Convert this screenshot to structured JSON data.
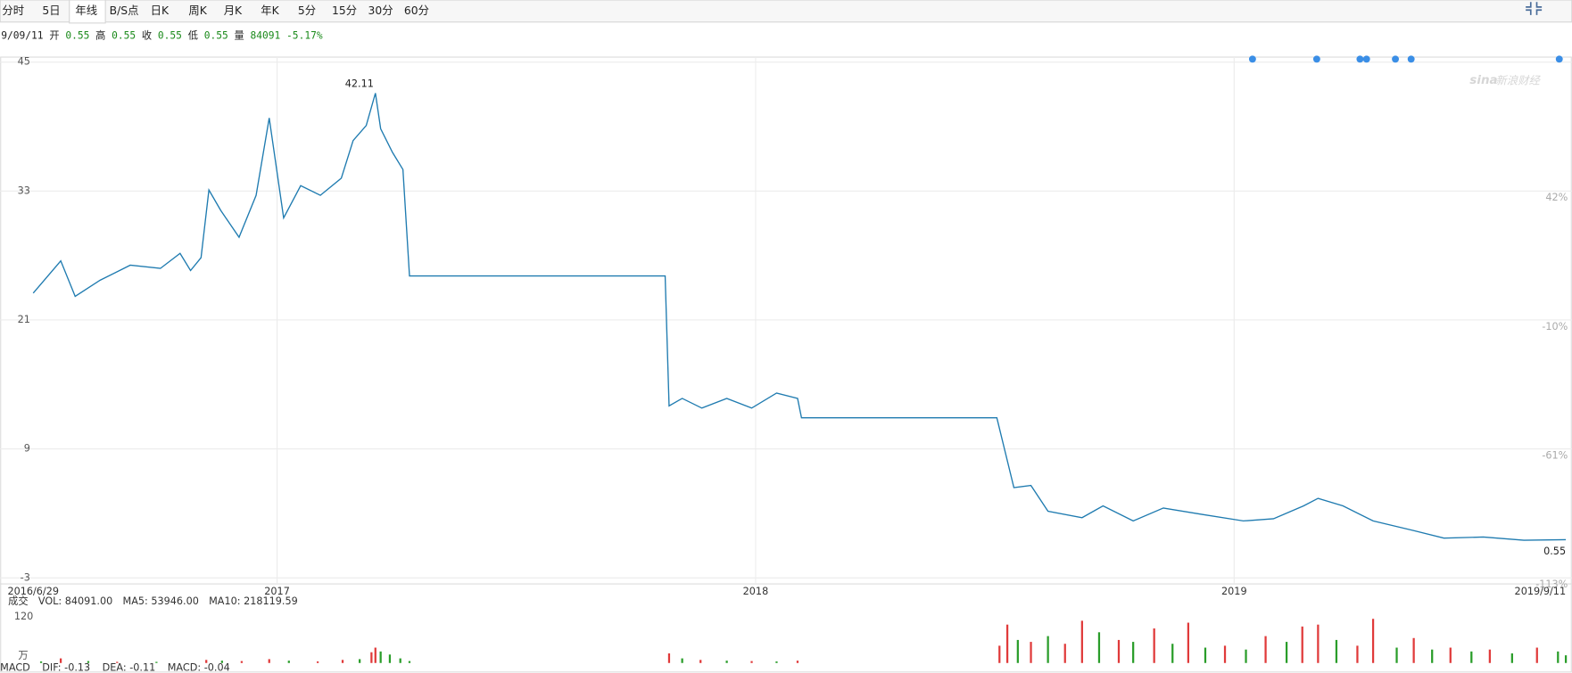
{
  "toolbar": {
    "tabs": [
      "分时",
      "5日",
      "年线",
      "B/S点",
      "日K",
      "周K",
      "月K",
      "年K",
      "5分",
      "15分",
      "30分",
      "60分"
    ],
    "active_tab": 2
  },
  "quote": {
    "date": "9/09/11",
    "items": [
      {
        "label": "开",
        "value": 0.55
      },
      {
        "label": "高",
        "value": 0.55
      },
      {
        "label": "收",
        "value": 0.55
      },
      {
        "label": "低",
        "value": 0.55
      },
      {
        "label": "量",
        "value": 84091
      }
    ],
    "change": "-5.17%"
  },
  "watermark": {
    "logo": "sina",
    "text": "新浪财经"
  },
  "chart_data": [
    {
      "type": "line",
      "grid": true,
      "xlim": [
        "2016-06-29",
        "2019-09-11"
      ],
      "xticks": [
        {
          "value": "2016-06-29",
          "label": "2016/6/29"
        },
        {
          "value": "2017-01-01",
          "label": "2017"
        },
        {
          "value": "2018-01-01",
          "label": "2018"
        },
        {
          "value": "2019-01-01",
          "label": "2019"
        },
        {
          "value": "2019-09-11",
          "label": "2019/9/11"
        }
      ],
      "ylim": [
        -3,
        45
      ],
      "yticks": [
        45,
        33,
        21,
        9,
        -3
      ],
      "pct_ticks": [
        {
          "value": 33,
          "label": "42%"
        },
        {
          "value": 21,
          "label": "-10%"
        },
        {
          "value": 9,
          "label": "-61%"
        },
        {
          "value": -3,
          "label": "-113%"
        }
      ],
      "event_dates": [
        "2019-01-15",
        "2019-03-05",
        "2019-04-07",
        "2019-04-12",
        "2019-05-04",
        "2019-05-16",
        "2019-09-06"
      ],
      "event_color": "#3a8ee6",
      "series": [
        {
          "color": "#1f7bb0",
          "x": [
            "2016-06-29",
            "2016-07-20",
            "2016-07-31",
            "2016-08-19",
            "2016-09-11",
            "2016-10-04",
            "2016-10-19",
            "2016-10-27",
            "2016-11-04",
            "2016-11-10",
            "2016-11-19",
            "2016-12-03",
            "2016-12-16",
            "2016-12-26",
            "2017-01-06",
            "2017-01-19",
            "2017-02-03",
            "2017-02-19",
            "2017-02-28",
            "2017-03-10",
            "2017-03-17",
            "2017-03-21",
            "2017-03-30",
            "2017-04-07",
            "2017-04-12",
            "2017-10-24",
            "2017-10-27",
            "2017-11-06",
            "2017-11-21",
            "2017-12-10",
            "2017-12-29",
            "2018-01-17",
            "2018-02-02",
            "2018-02-05",
            "2018-07-04",
            "2018-07-17",
            "2018-07-30",
            "2018-08-12",
            "2018-09-07",
            "2018-09-23",
            "2018-10-16",
            "2018-11-08",
            "2018-12-08",
            "2019-01-08",
            "2019-01-31",
            "2019-02-23",
            "2019-03-06",
            "2019-03-25",
            "2019-04-17",
            "2019-05-18",
            "2019-06-10",
            "2019-07-10",
            "2019-08-10",
            "2019-09-11"
          ],
          "values": [
            23.5,
            26.5,
            23.2,
            24.7,
            26.1,
            25.8,
            27.2,
            25.6,
            26.8,
            33.1,
            31.2,
            28.7,
            32.6,
            39.8,
            30.5,
            33.5,
            32.6,
            34.2,
            37.7,
            39.1,
            42.11,
            38.8,
            36.6,
            35.0,
            25.1,
            25.1,
            13.0,
            13.7,
            12.8,
            13.7,
            12.8,
            14.2,
            13.7,
            11.9,
            11.9,
            5.4,
            5.6,
            3.2,
            2.6,
            3.7,
            2.3,
            3.5,
            2.9,
            2.3,
            2.5,
            3.7,
            4.4,
            3.7,
            2.3,
            1.4,
            0.7,
            0.8,
            0.5,
            0.55
          ]
        }
      ],
      "max_index": 20
    },
    {
      "type": "bar",
      "unit": "万",
      "legend": [
        "成交",
        "VOL: 84091.00",
        "MA5: 53946.00",
        "MA10: 218119.59"
      ],
      "legend_colors": [
        "#888888",
        "#888888",
        "#e88fa9",
        "#2bb5c8"
      ],
      "macd_legend": [
        "MACD",
        "DIF: -0.13",
        "DEA: -0.11",
        "MACD: -0.04"
      ],
      "macd_legend_colors": [
        "#888888",
        "#3a7bd5",
        "#c36fd6",
        "#c0392b"
      ],
      "ylim": [
        0,
        120
      ],
      "yticks": [
        120
      ],
      "x": [
        "2016-07-05",
        "2016-07-20",
        "2016-08-10",
        "2016-09-01",
        "2016-10-01",
        "2016-11-08",
        "2016-11-20",
        "2016-12-05",
        "2016-12-26",
        "2017-01-10",
        "2017-02-01",
        "2017-02-20",
        "2017-03-05",
        "2017-03-14",
        "2017-03-17",
        "2017-03-21",
        "2017-03-28",
        "2017-04-05",
        "2017-04-12",
        "2017-10-27",
        "2017-11-06",
        "2017-11-20",
        "2017-12-10",
        "2017-12-29",
        "2018-01-17",
        "2018-02-02",
        "2018-07-06",
        "2018-07-12",
        "2018-07-20",
        "2018-07-30",
        "2018-08-12",
        "2018-08-25",
        "2018-09-07",
        "2018-09-20",
        "2018-10-05",
        "2018-10-16",
        "2018-11-01",
        "2018-11-15",
        "2018-11-27",
        "2018-12-10",
        "2018-12-25",
        "2019-01-10",
        "2019-01-25",
        "2019-02-10",
        "2019-02-22",
        "2019-03-06",
        "2019-03-20",
        "2019-04-05",
        "2019-04-17",
        "2019-05-05",
        "2019-05-18",
        "2019-06-01",
        "2019-06-15",
        "2019-07-01",
        "2019-07-15",
        "2019-08-01",
        "2019-08-20",
        "2019-09-05",
        "2019-09-11"
      ],
      "values": [
        4,
        12,
        5,
        3,
        3,
        8,
        6,
        5,
        10,
        6,
        4,
        8,
        10,
        28,
        40,
        30,
        22,
        12,
        5,
        25,
        12,
        8,
        6,
        5,
        4,
        6,
        45,
        100,
        60,
        55,
        70,
        50,
        110,
        80,
        60,
        55,
        90,
        50,
        105,
        40,
        45,
        35,
        70,
        55,
        95,
        100,
        60,
        45,
        115,
        40,
        65,
        35,
        40,
        30,
        35,
        25,
        40,
        30,
        20
      ],
      "colors": [
        "#2a9d2a",
        "#e03a3a",
        "#2a9d2a",
        "#e03a3a",
        "#2a9d2a",
        "#e03a3a",
        "#2a9d2a",
        "#e03a3a",
        "#e03a3a",
        "#2a9d2a",
        "#e03a3a",
        "#e03a3a",
        "#2a9d2a",
        "#e03a3a",
        "#e03a3a",
        "#2a9d2a",
        "#2a9d2a",
        "#2a9d2a",
        "#2a9d2a",
        "#e03a3a",
        "#2a9d2a",
        "#e03a3a",
        "#2a9d2a",
        "#e03a3a",
        "#2a9d2a",
        "#e03a3a",
        "#e03a3a",
        "#e03a3a",
        "#2a9d2a",
        "#e03a3a",
        "#2a9d2a",
        "#e03a3a",
        "#e03a3a",
        "#2a9d2a",
        "#e03a3a",
        "#2a9d2a",
        "#e03a3a",
        "#2a9d2a",
        "#e03a3a",
        "#2a9d2a",
        "#e03a3a",
        "#2a9d2a",
        "#e03a3a",
        "#2a9d2a",
        "#e03a3a",
        "#e03a3a",
        "#2a9d2a",
        "#e03a3a",
        "#e03a3a",
        "#2a9d2a",
        "#e03a3a",
        "#2a9d2a",
        "#e03a3a",
        "#2a9d2a",
        "#e03a3a",
        "#2a9d2a",
        "#e03a3a",
        "#2a9d2a",
        "#2a9d2a"
      ]
    }
  ]
}
